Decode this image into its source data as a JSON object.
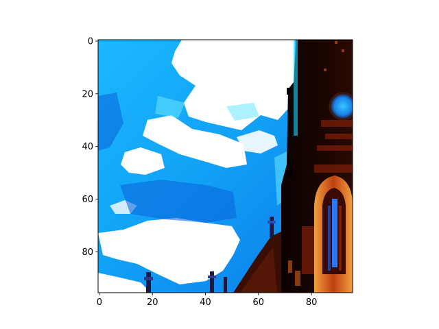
{
  "figure": {
    "image_description_icon": "church-tower-against-sky-image",
    "palette": {
      "sky_blue": "#1aa3f5",
      "sky_deep": "#0b6fe0",
      "cloud_white": "#ffffff",
      "cyan_edge": "#18d8ff",
      "tower_black": "#100400",
      "brick_red": "#7a1e08",
      "orange_glow": "#e8841a",
      "window_blue": "#2a78ff"
    }
  },
  "chart_data": {
    "type": "image",
    "xlim": [
      -0.5,
      95.5
    ],
    "ylim": [
      95.5,
      -0.5
    ],
    "x_ticks": [
      0,
      20,
      40,
      60,
      80
    ],
    "y_ticks": [
      0,
      20,
      40,
      60,
      80
    ],
    "x_tick_labels": [
      "0",
      "20",
      "40",
      "60",
      "80"
    ],
    "y_tick_labels": [
      "0",
      "20",
      "40",
      "60",
      "80"
    ]
  }
}
